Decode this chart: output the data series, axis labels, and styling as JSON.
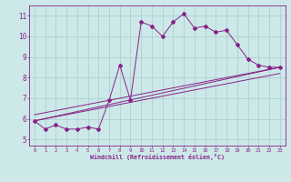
{
  "bg_color": "#cce8e8",
  "line_color": "#882288",
  "grid_color": "#aacccc",
  "xlabel": "Windchill (Refroidissement éolien,°C)",
  "xlabel_color": "#882288",
  "ylabel_ticks": [
    5,
    6,
    7,
    8,
    9,
    10,
    11
  ],
  "xlim": [
    -0.5,
    23.5
  ],
  "ylim": [
    4.7,
    11.5
  ],
  "x_ticks": [
    0,
    1,
    2,
    3,
    4,
    5,
    6,
    7,
    8,
    9,
    10,
    11,
    12,
    13,
    14,
    15,
    16,
    17,
    18,
    19,
    20,
    21,
    22,
    23
  ],
  "series1_x": [
    0,
    1,
    2,
    3,
    4,
    5,
    6,
    7,
    8,
    9,
    10,
    11,
    12,
    13,
    14,
    15,
    16,
    17,
    18,
    19,
    20,
    21,
    22,
    23
  ],
  "series1_y": [
    5.9,
    5.5,
    5.7,
    5.5,
    5.5,
    5.6,
    5.5,
    6.9,
    8.6,
    6.9,
    10.7,
    10.5,
    10.0,
    10.7,
    11.1,
    10.4,
    10.5,
    10.2,
    10.3,
    9.6,
    8.9,
    8.6,
    8.5,
    8.5
  ],
  "series2_x": [
    0,
    23
  ],
  "series2_y": [
    5.9,
    8.5
  ],
  "series3_x": [
    0,
    23
  ],
  "series3_y": [
    5.9,
    8.2
  ],
  "series4_x": [
    0,
    23
  ],
  "series4_y": [
    6.2,
    8.5
  ]
}
